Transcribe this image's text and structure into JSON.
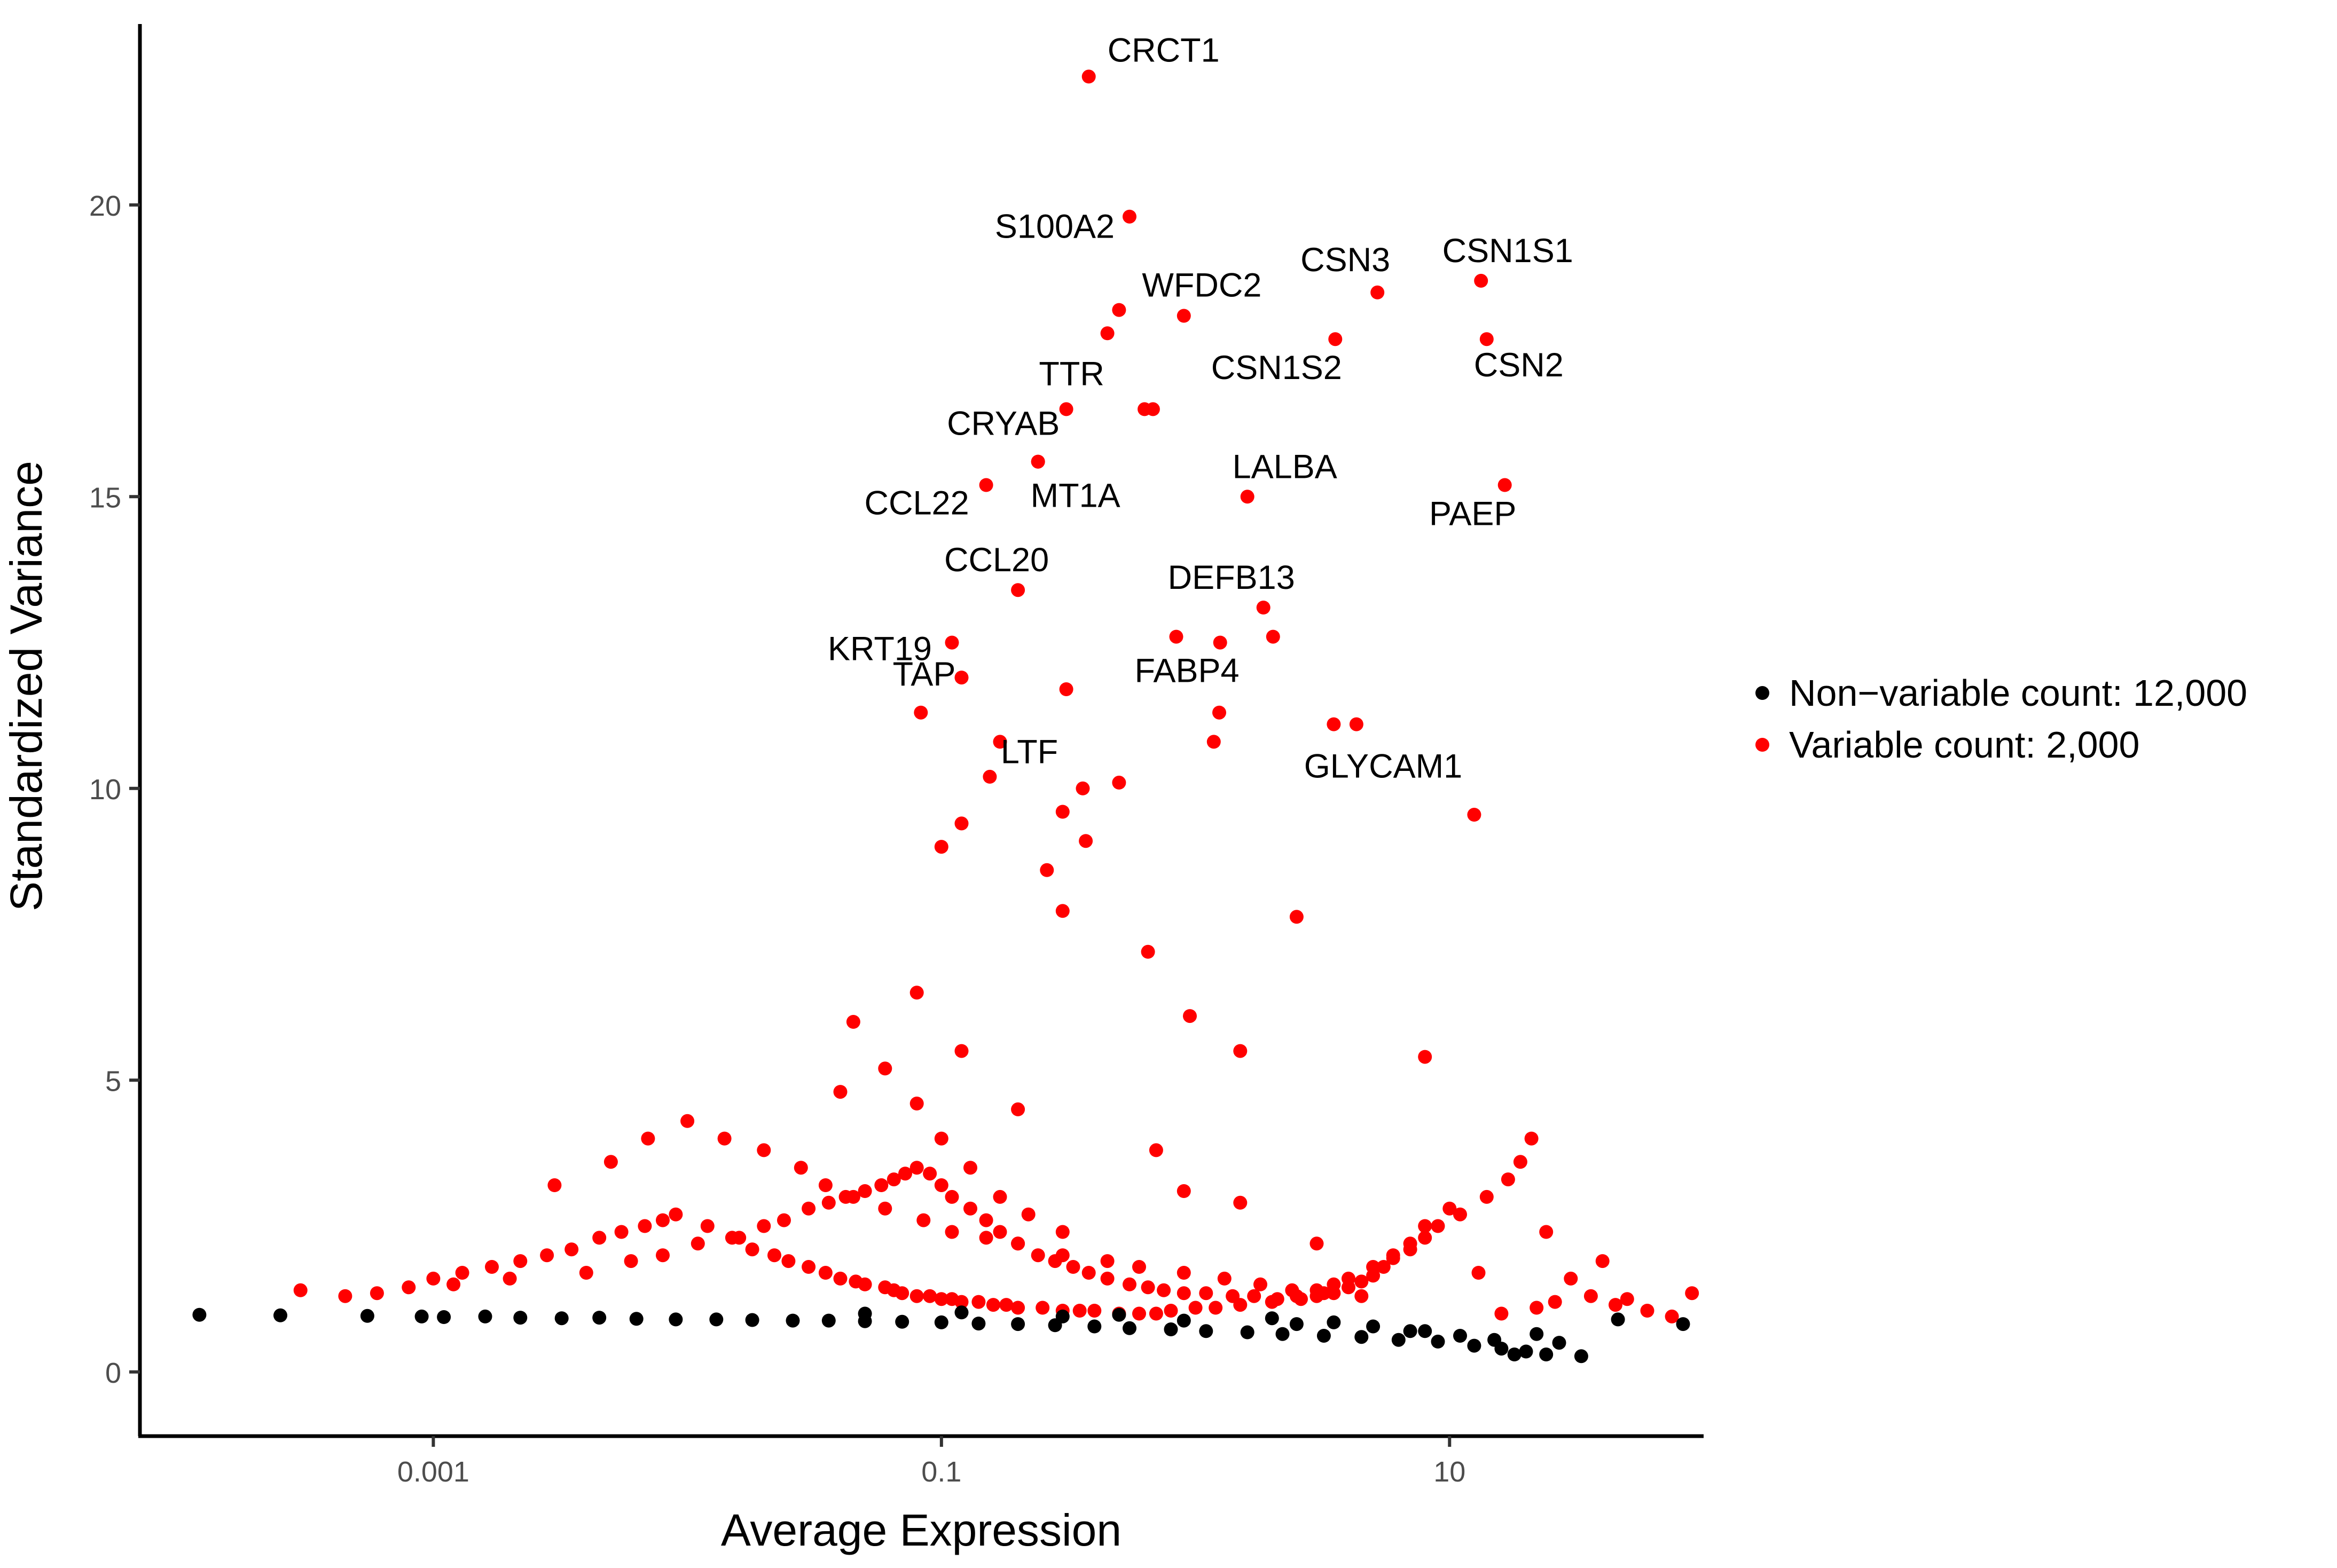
{
  "chart_data": {
    "type": "scatter",
    "title": "",
    "xlabel": "Average Expression",
    "ylabel": "Standardized Variance",
    "x_scale": "log10",
    "xlim": [
      7e-05,
      100
    ],
    "ylim": [
      -1.1,
      23.1
    ],
    "x_ticks": [
      {
        "value": 0.001,
        "label": "0.001"
      },
      {
        "value": 0.1,
        "label": "0.1"
      },
      {
        "value": 10,
        "label": "10"
      }
    ],
    "y_ticks": [
      {
        "value": 0,
        "label": "0"
      },
      {
        "value": 5,
        "label": "5"
      },
      {
        "value": 10,
        "label": "10"
      },
      {
        "value": 15,
        "label": "15"
      },
      {
        "value": 20,
        "label": "20"
      }
    ],
    "grid": false,
    "legend_position": "right",
    "colors": {
      "variable": "#ff0000",
      "non_variable": "#000000"
    },
    "series": [
      {
        "name": "Non-variable count: 12,000",
        "color": "#000000",
        "x": [
          0.00012,
          0.00025,
          0.00055,
          0.0009,
          0.0011,
          0.0016,
          0.0022,
          0.0032,
          0.0045,
          0.0063,
          0.009,
          0.013,
          0.018,
          0.026,
          0.036,
          0.05,
          0.07,
          0.1,
          0.14,
          0.2,
          0.28,
          0.4,
          0.55,
          0.8,
          1.1,
          1.6,
          2.2,
          3.2,
          4.5,
          6.3,
          9,
          12.5,
          16,
          20,
          24,
          0.12,
          0.3,
          0.9,
          2.5,
          7,
          11,
          15,
          18,
          22,
          27,
          33,
          46,
          83,
          2.0,
          3.5,
          5.0,
          8.0,
          0.05,
          0.5
        ],
        "y": [
          0.98,
          0.97,
          0.96,
          0.95,
          0.94,
          0.95,
          0.93,
          0.92,
          0.93,
          0.91,
          0.9,
          0.9,
          0.89,
          0.88,
          0.88,
          0.87,
          0.86,
          0.85,
          0.83,
          0.82,
          0.8,
          0.78,
          0.75,
          0.73,
          0.7,
          0.68,
          0.65,
          0.62,
          0.6,
          0.55,
          0.52,
          0.45,
          0.4,
          0.35,
          0.3,
          1.02,
          0.95,
          0.88,
          0.82,
          0.7,
          0.62,
          0.55,
          0.3,
          0.65,
          0.5,
          0.27,
          0.9,
          0.82,
          0.92,
          0.85,
          0.78,
          0.7,
          1.0,
          0.98
        ]
      },
      {
        "name": "Variable count: 2,000",
        "color": "#ff0000",
        "x": [
          0.00045,
          0.0006,
          0.0008,
          0.001,
          0.0013,
          0.0017,
          0.0022,
          0.0028,
          0.0035,
          0.0045,
          0.0055,
          0.0068,
          0.008,
          0.009,
          0.012,
          0.015,
          0.018,
          0.022,
          0.025,
          0.03,
          0.035,
          0.04,
          0.046,
          0.05,
          0.06,
          0.065,
          0.07,
          0.08,
          0.09,
          0.1,
          0.11,
          0.12,
          0.14,
          0.16,
          0.18,
          0.2,
          0.25,
          0.3,
          0.35,
          0.4,
          0.5,
          0.6,
          0.7,
          0.8,
          1.0,
          1.2,
          1.5,
          2.0,
          2.5,
          3.0,
          3.5,
          4.0,
          5.0,
          6.0,
          7.0,
          8.0,
          10.0,
          13.0,
          16.0,
          22.0,
          26.0,
          40.0,
          50.0,
          90.0,
          0.003,
          0.005,
          0.007,
          0.01,
          0.014,
          0.02,
          0.028,
          0.035,
          0.045,
          0.06,
          0.085,
          0.11,
          0.15,
          0.2,
          0.3,
          0.45,
          0.6,
          0.9,
          1.3,
          1.8,
          2.4,
          3.2,
          4.5,
          0.04,
          0.06,
          0.08,
          0.1,
          0.13,
          0.17,
          0.22,
          0.3,
          0.045,
          0.08,
          0.12,
          0.2,
          0.7,
          1.5,
          3.0,
          0.9
        ],
        "y": [
          1.3,
          1.35,
          1.45,
          1.6,
          1.7,
          1.8,
          1.9,
          2.0,
          2.1,
          2.3,
          2.4,
          2.5,
          2.6,
          2.7,
          2.5,
          2.3,
          2.1,
          2.0,
          1.9,
          1.8,
          1.7,
          1.6,
          1.55,
          1.5,
          1.45,
          1.4,
          1.35,
          1.3,
          1.3,
          1.25,
          1.25,
          1.2,
          1.2,
          1.15,
          1.15,
          1.1,
          1.1,
          1.05,
          1.05,
          1.05,
          1.0,
          1.0,
          1.0,
          1.05,
          1.1,
          1.1,
          1.15,
          1.2,
          1.3,
          1.4,
          1.5,
          1.6,
          1.8,
          2.0,
          2.2,
          2.5,
          2.8,
          1.7,
          1.0,
          1.1,
          1.2,
          1.9,
          1.25,
          1.35,
          3.2,
          3.6,
          4.0,
          4.3,
          4.0,
          3.8,
          3.5,
          3.2,
          3.0,
          2.8,
          2.6,
          2.4,
          2.3,
          2.2,
          2.0,
          1.9,
          1.8,
          1.7,
          1.6,
          1.5,
          1.4,
          1.35,
          1.3,
          4.8,
          5.2,
          4.6,
          4.0,
          3.5,
          3.0,
          2.7,
          2.4,
          6.0,
          6.5,
          5.5,
          4.5,
          3.8,
          2.9,
          2.2,
          3.1
        ]
      },
      {
        "name": "Variable count: 2,000",
        "color": "#ff0000",
        "x": [
          0.0003,
          0.0012,
          0.002,
          0.004,
          0.006,
          0.008,
          0.011,
          0.016,
          0.02,
          0.024,
          0.03,
          0.036,
          0.042,
          0.05,
          0.058,
          0.065,
          0.072,
          0.08,
          0.09,
          0.1,
          0.11,
          0.13,
          0.15,
          0.17,
          0.2,
          0.24,
          0.28,
          0.33,
          0.38,
          0.45,
          0.55,
          0.65,
          0.75,
          0.9,
          1.1,
          1.4,
          1.7,
          2.1,
          2.6,
          3.0,
          3.5,
          4.0,
          4.5,
          5.0,
          5.5,
          6.0,
          7.0,
          8.0,
          9.0,
          11.0,
          14.0,
          17.0,
          19.0,
          21.0,
          24.0,
          30.0,
          36.0,
          45.0,
          60.0,
          75.0
        ],
        "y": [
          1.4,
          1.5,
          1.6,
          1.7,
          1.9,
          2.0,
          2.2,
          2.3,
          2.5,
          2.6,
          2.8,
          2.9,
          3.0,
          3.1,
          3.2,
          3.3,
          3.4,
          3.5,
          3.4,
          3.2,
          3.0,
          2.8,
          2.6,
          2.4,
          2.2,
          2.0,
          1.9,
          1.8,
          1.7,
          1.6,
          1.5,
          1.45,
          1.4,
          1.35,
          1.35,
          1.3,
          1.3,
          1.25,
          1.25,
          1.3,
          1.35,
          1.45,
          1.55,
          1.65,
          1.8,
          1.95,
          2.1,
          2.3,
          2.5,
          2.7,
          3.0,
          3.3,
          3.6,
          4.0,
          2.4,
          1.6,
          1.3,
          1.15,
          1.05,
          0.95
        ]
      }
    ],
    "highlighted_genes": [
      {
        "label": "CRCT1",
        "x": 0.38,
        "y": 22.2
      },
      {
        "label": "S100A2",
        "x": 0.55,
        "y": 19.8
      },
      {
        "label": "WFDC2",
        "x": 0.5,
        "y": 18.2
      },
      {
        "label": "CSN3",
        "x": 5.2,
        "y": 18.5
      },
      {
        "label": "CSN1S1",
        "x": 13.3,
        "y": 18.7
      },
      {
        "label": "CSN1S2",
        "x": 3.55,
        "y": 17.7
      },
      {
        "label": "CSN2",
        "x": 14.0,
        "y": 17.7
      },
      {
        "label": "TTR",
        "x": 0.31,
        "y": 16.5
      },
      {
        "label": "CRYAB",
        "x": 0.24,
        "y": 15.6
      },
      {
        "label": "LALBA",
        "x": 1.6,
        "y": 15.0
      },
      {
        "label": "CCL22",
        "x": 0.15,
        "y": 15.2
      },
      {
        "label": "MT1A",
        "x": 0.24,
        "y": 15.6
      },
      {
        "label": "PAEP",
        "x": 16.5,
        "y": 15.2
      },
      {
        "label": "CCL20",
        "x": 0.2,
        "y": 13.4
      },
      {
        "label": "DEFB13",
        "x": 1.85,
        "y": 13.1
      },
      {
        "label": "KRT19",
        "x": 0.11,
        "y": 12.5
      },
      {
        "label": "TAP",
        "x": 0.12,
        "y": 11.9
      },
      {
        "label": "FABP4",
        "x": 0.84,
        "y": 12.6
      },
      {
        "label": "GLYCAM1",
        "x": 4.3,
        "y": 11.1
      },
      {
        "label": "LTF",
        "x": 0.17,
        "y": 10.8
      }
    ],
    "extra_variable_points": {
      "x": [
        0.68,
        0.9,
        0.45,
        0.63,
        1.24,
        1.18,
        1.25,
        0.083,
        0.31,
        2.02,
        3.5,
        0.5,
        0.36,
        0.3,
        0.155,
        0.37,
        0.26,
        0.12,
        12.5,
        2.5,
        8.0,
        0.3,
        0.65,
        0.95,
        1.5,
        0.1
      ],
      "y": [
        16.5,
        18.1,
        17.8,
        16.5,
        11.3,
        10.8,
        12.5,
        11.3,
        11.7,
        12.6,
        11.1,
        10.1,
        10.0,
        9.6,
        10.2,
        9.1,
        8.6,
        9.4,
        9.55,
        7.8,
        5.4,
        7.9,
        7.2,
        6.1,
        5.5,
        9.0
      ]
    }
  },
  "legend": {
    "items": [
      {
        "label": "Non−variable count: 12,000",
        "color": "#000000"
      },
      {
        "label": "Variable count: 2,000",
        "color": "#ff0000"
      }
    ]
  }
}
